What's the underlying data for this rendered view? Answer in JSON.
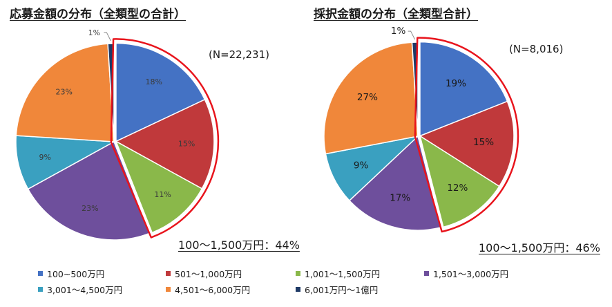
{
  "chart_data": [
    {
      "type": "pie",
      "title": "応募金額の分布（全類型の合計）",
      "n_label": "(N=22,231)",
      "summary": "100～1,500万円：44%",
      "slices": [
        {
          "label": "100~500万円",
          "value": 18,
          "text": "18%",
          "color": "#4472c4"
        },
        {
          "label": "501～1,000万円",
          "value": 15,
          "text": "15%",
          "color": "#c0393b"
        },
        {
          "label": "1,001～1,500万円",
          "value": 11,
          "text": "11%",
          "color": "#8ab84a"
        },
        {
          "label": "1,501～3,000万円",
          "value": 23,
          "text": "23%",
          "color": "#6e4f9c"
        },
        {
          "label": "3,001～4,500万円",
          "value": 9,
          "text": "9%",
          "color": "#3aa0c0"
        },
        {
          "label": "4,501～6,000万円",
          "value": 23,
          "text": "23%",
          "color": "#f0873a"
        },
        {
          "label": "6,001万円～1億円",
          "value": 1,
          "text": "1%",
          "color": "#1f3a66"
        }
      ]
    },
    {
      "type": "pie",
      "title": "採択金額の分布（全類型合計）",
      "n_label": "(N=8,016)",
      "summary": "100～1,500万円：46%",
      "slices": [
        {
          "label": "100~500万円",
          "value": 19,
          "text": "19%",
          "color": "#4472c4"
        },
        {
          "label": "501～1,000万円",
          "value": 15,
          "text": "15%",
          "color": "#c0393b"
        },
        {
          "label": "1,001～1,500万円",
          "value": 12,
          "text": "12%",
          "color": "#8ab84a"
        },
        {
          "label": "1,501～3,000万円",
          "value": 17,
          "text": "17%",
          "color": "#6e4f9c"
        },
        {
          "label": "3,001～4,500万円",
          "value": 9,
          "text": "9%",
          "color": "#3aa0c0"
        },
        {
          "label": "4,501～6,000万円",
          "value": 27,
          "text": "27%",
          "color": "#f0873a"
        },
        {
          "label": "6,001万円～1億円",
          "value": 1,
          "text": "1%",
          "color": "#1f3a66"
        }
      ]
    }
  ],
  "legend": [
    {
      "label": "100~500万円",
      "color": "#4472c4"
    },
    {
      "label": "501～1,000万円",
      "color": "#c0393b"
    },
    {
      "label": "1,001～1,500万円",
      "color": "#8ab84a"
    },
    {
      "label": "1,501～3,000万円",
      "color": "#6e4f9c"
    },
    {
      "label": "3,001～4,500万円",
      "color": "#3aa0c0"
    },
    {
      "label": "4,501～6,000万円",
      "color": "#f0873a"
    },
    {
      "label": "6,001万円～1億円",
      "color": "#1f3a66"
    }
  ],
  "highlight_color": "#e8141c"
}
